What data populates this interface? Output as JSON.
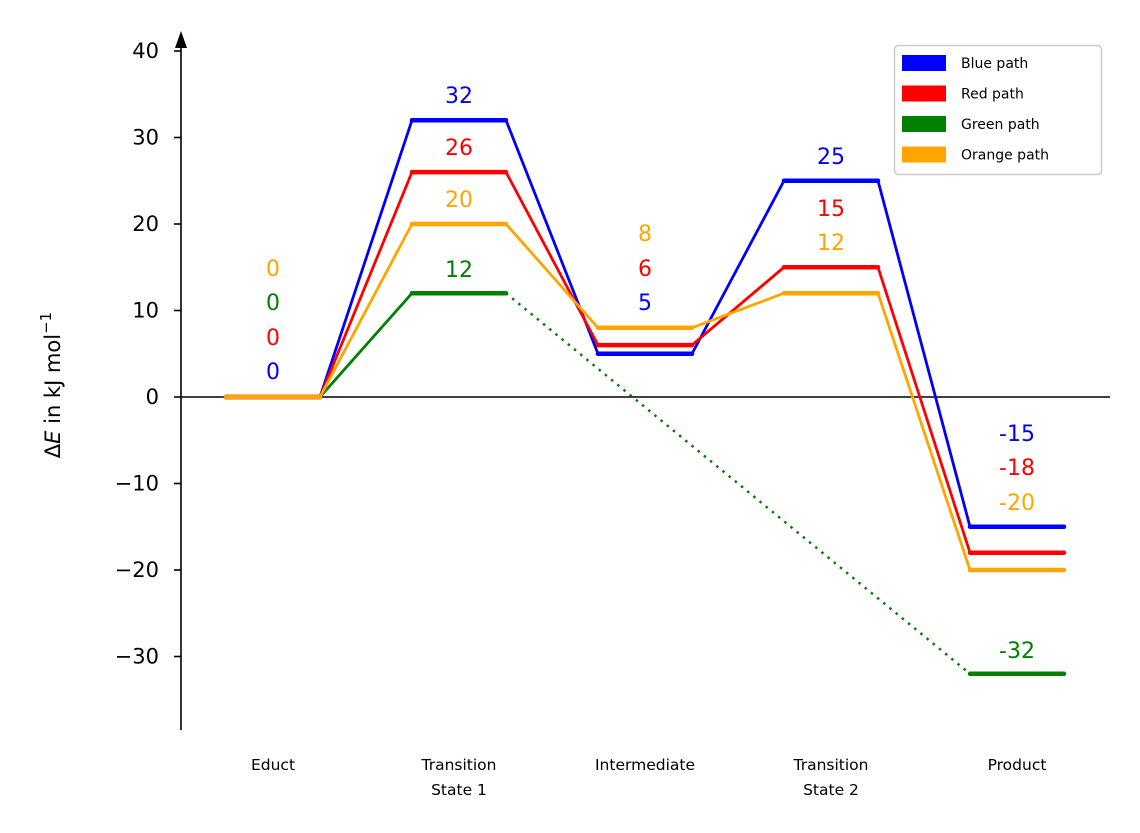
{
  "chart_data": {
    "type": "line",
    "title": "",
    "xlabel": "",
    "ylabel": "ΔE in kJ mol⁻¹",
    "ylabel_parts": {
      "delta": "Δ",
      "var": "E",
      "rest": " in kJ mol",
      "sup": "−1"
    },
    "ylim": [
      -38.5,
      42
    ],
    "yticks": [
      40,
      30,
      20,
      10,
      0,
      -10,
      -20,
      -30
    ],
    "ytick_labels": [
      "40",
      "30",
      "20",
      "10",
      "0",
      "−10",
      "−20",
      "−30"
    ],
    "zero_line": true,
    "grid": false,
    "legend_position": "top-right",
    "categories": [
      {
        "lines": [
          "Educt"
        ]
      },
      {
        "lines": [
          "Transition",
          "State 1"
        ]
      },
      {
        "lines": [
          "Intermediate"
        ]
      },
      {
        "lines": [
          "Transition",
          "State 2"
        ]
      },
      {
        "lines": [
          "Product"
        ]
      }
    ],
    "series": [
      {
        "name": "Green path",
        "color": "#008000",
        "values": [
          0,
          12,
          null,
          null,
          -32
        ],
        "dotted_segment": "Transition State 1 to Product"
      },
      {
        "name": "Blue path",
        "color": "#0000ff",
        "values": [
          0,
          32,
          5,
          25,
          -15
        ]
      },
      {
        "name": "Red path",
        "color": "#ff0000",
        "values": [
          0,
          26,
          6,
          15,
          -18
        ]
      },
      {
        "name": "Orange path",
        "color": "#ffa500",
        "values": [
          0,
          20,
          8,
          12,
          -20
        ]
      }
    ],
    "legend_order": [
      "Blue path",
      "Red path",
      "Green path",
      "Orange path"
    ]
  }
}
